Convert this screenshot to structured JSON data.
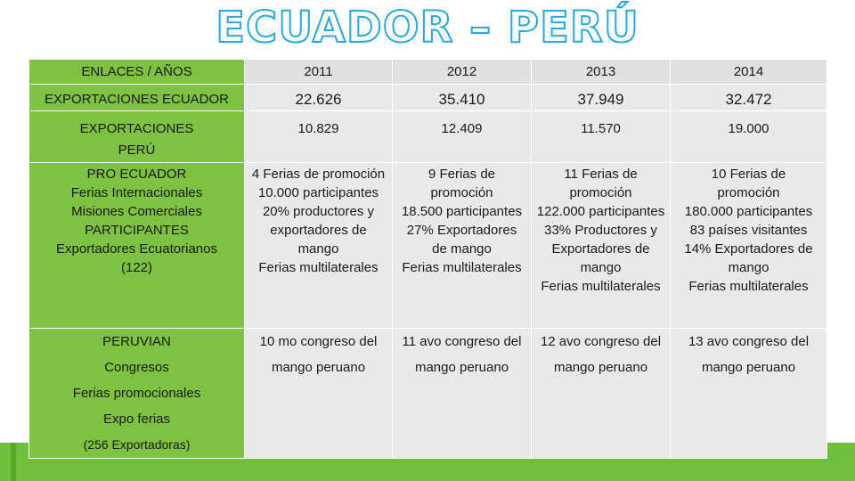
{
  "title": "ECUADOR – PERÚ",
  "header": {
    "label": "ENLACES / AÑOS",
    "years": [
      "2011",
      "2012",
      "2013",
      "2014"
    ]
  },
  "export_ecuador": {
    "label": "EXPORTACIONES ECUADOR",
    "values": [
      "22.626",
      "35.410",
      "37.949",
      "32.472"
    ]
  },
  "export_peru": {
    "label_lines": [
      "EXPORTACIONES",
      "PERÚ"
    ],
    "values": [
      "10.829",
      "12.409",
      "11.570",
      "19.000"
    ]
  },
  "pro_ecuador": {
    "label_lines": [
      "PRO ECUADOR",
      "Ferias Internacionales",
      "Misiones Comerciales",
      "PARTICIPANTES",
      "Exportadores Ecuatorianos",
      "(122)"
    ],
    "values": [
      [
        "4 Ferias de promoción",
        "10.000 participantes",
        "20% productores y",
        "exportadores de",
        "mango",
        "Ferias multilaterales"
      ],
      [
        "9 Ferias de",
        "promoción",
        "18.500 participantes",
        "27% Exportadores",
        "de mango",
        "Ferias multilaterales"
      ],
      [
        "11 Ferias de",
        "promoción",
        "122.000 participantes",
        "33% Productores y",
        "Exportadores de",
        "mango",
        "Ferias multilaterales"
      ],
      [
        "10 Ferias de",
        "promoción",
        "180.000 participantes",
        "83 países visitantes",
        "14% Exportadores de",
        "mango",
        "Ferias multilaterales"
      ]
    ]
  },
  "peruvian": {
    "label_lines": [
      "PERUVIAN",
      "Congresos",
      "Ferias promocionales",
      "Expo ferias",
      "(256 Exportadoras)"
    ],
    "values": [
      [
        "10 mo congreso del",
        "mango peruano"
      ],
      [
        "11 avo congreso del",
        "mango peruano"
      ],
      [
        "12 avo congreso del",
        "mango peruano"
      ],
      [
        "13 avo congreso del",
        "mango peruano"
      ]
    ]
  },
  "colors": {
    "label_column": "#7dc242",
    "cells": "#e9e9e9",
    "title_outline": "#2aa8dc",
    "bottom_bar": "#6fbf3a"
  }
}
